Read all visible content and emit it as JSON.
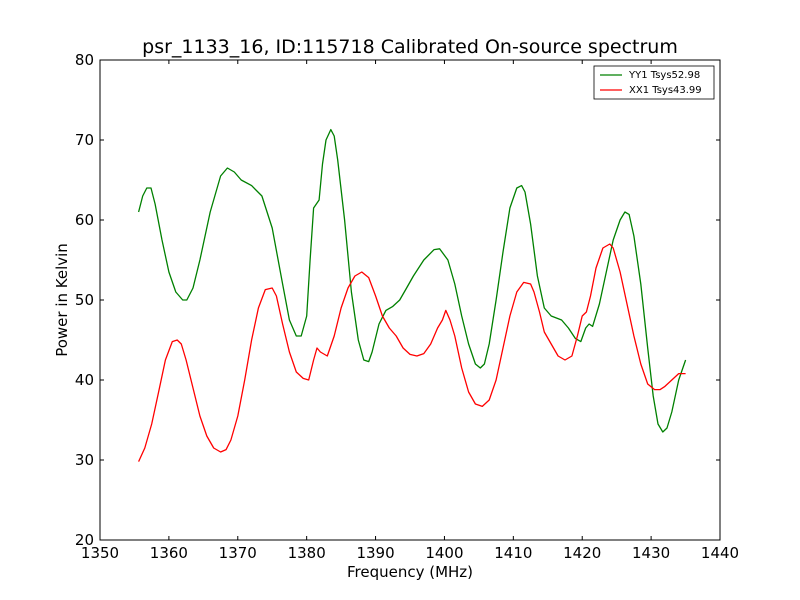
{
  "chart_data": {
    "type": "line",
    "title": "psr_1133_16, ID:115718 Calibrated On-source spectrum",
    "xlabel": "Frequency (MHz)",
    "ylabel": "Power in Kelvin",
    "xlim": [
      1350,
      1440
    ],
    "ylim": [
      20,
      80
    ],
    "xticks": [
      "1350",
      "1360",
      "1370",
      "1380",
      "1390",
      "1400",
      "1410",
      "1420",
      "1430",
      "1440"
    ],
    "yticks": [
      "20",
      "30",
      "40",
      "50",
      "60",
      "70",
      "80"
    ],
    "grid": false,
    "legend_position": "top-right",
    "series": [
      {
        "name": "YY1 Tsys52.98",
        "color": "#008000",
        "x": [
          1355.6,
          1356.2,
          1356.8,
          1357.4,
          1358.0,
          1359.0,
          1360.0,
          1361.0,
          1362.0,
          1362.6,
          1363.5,
          1364.5,
          1366.0,
          1367.5,
          1368.5,
          1369.5,
          1370.5,
          1372.0,
          1373.5,
          1375.0,
          1376.5,
          1377.5,
          1378.5,
          1379.2,
          1380.0,
          1380.5,
          1381.0,
          1381.8,
          1382.3,
          1382.8,
          1383.5,
          1384.0,
          1384.5,
          1385.5,
          1386.5,
          1387.5,
          1388.3,
          1389.0,
          1389.5,
          1390.5,
          1391.5,
          1392.5,
          1393.5,
          1394.5,
          1395.5,
          1397.0,
          1398.5,
          1399.3,
          1400.5,
          1401.5,
          1402.5,
          1403.5,
          1404.5,
          1405.2,
          1405.8,
          1406.5,
          1407.5,
          1408.5,
          1409.5,
          1410.5,
          1411.2,
          1411.7,
          1412.5,
          1413.5,
          1414.5,
          1415.5,
          1417.0,
          1418.0,
          1419.0,
          1419.8,
          1420.5,
          1421.0,
          1421.5,
          1422.5,
          1423.5,
          1424.5,
          1425.5,
          1426.2,
          1426.8,
          1427.5,
          1428.5,
          1429.5,
          1430.3,
          1431.0,
          1431.7,
          1432.3,
          1433.0,
          1434.0,
          1435.0
        ],
        "y": [
          61.0,
          63.0,
          64.0,
          64.0,
          62.0,
          57.5,
          53.5,
          51.0,
          50.0,
          50.0,
          51.5,
          55.0,
          61.0,
          65.5,
          66.5,
          66.0,
          65.0,
          64.3,
          63.0,
          59.0,
          52.0,
          47.5,
          45.5,
          45.5,
          48.0,
          55.0,
          61.5,
          62.5,
          67.0,
          70.0,
          71.3,
          70.5,
          67.5,
          60.0,
          51.0,
          45.0,
          42.5,
          42.3,
          43.5,
          47.0,
          48.7,
          49.2,
          50.0,
          51.5,
          53.0,
          55.0,
          56.3,
          56.4,
          55.0,
          52.0,
          48.0,
          44.5,
          42.0,
          41.5,
          42.0,
          44.5,
          50.0,
          56.0,
          61.5,
          64.0,
          64.3,
          63.5,
          59.5,
          53.0,
          49.0,
          48.0,
          47.5,
          46.5,
          45.2,
          44.8,
          46.5,
          47.0,
          46.7,
          49.5,
          53.5,
          57.5,
          60.0,
          61.0,
          60.7,
          58.0,
          52.0,
          44.0,
          38.0,
          34.5,
          33.5,
          34.0,
          36.0,
          40.0,
          42.5
        ]
      },
      {
        "name": "XX1 Tsys43.99",
        "color": "#ff0000",
        "x": [
          1355.6,
          1356.5,
          1357.5,
          1358.5,
          1359.5,
          1360.5,
          1361.2,
          1361.8,
          1362.5,
          1363.5,
          1364.5,
          1365.5,
          1366.5,
          1367.5,
          1368.3,
          1369.0,
          1370.0,
          1371.0,
          1372.0,
          1373.0,
          1374.0,
          1375.0,
          1375.6,
          1376.5,
          1377.5,
          1378.5,
          1379.5,
          1380.3,
          1381.0,
          1381.5,
          1382.0,
          1383.0,
          1384.0,
          1385.0,
          1386.0,
          1387.0,
          1388.0,
          1389.0,
          1390.0,
          1391.0,
          1392.0,
          1393.0,
          1394.0,
          1395.0,
          1396.0,
          1397.0,
          1398.0,
          1399.0,
          1399.7,
          1400.2,
          1400.8,
          1401.5,
          1402.5,
          1403.5,
          1404.5,
          1405.5,
          1406.5,
          1407.5,
          1408.5,
          1409.5,
          1410.5,
          1411.5,
          1412.5,
          1413.0,
          1413.8,
          1414.5,
          1415.5,
          1416.5,
          1417.5,
          1418.5,
          1419.3,
          1420.0,
          1420.6,
          1421.2,
          1422.0,
          1423.0,
          1424.0,
          1424.5,
          1425.5,
          1426.5,
          1427.5,
          1428.5,
          1429.5,
          1430.5,
          1431.3,
          1432.0,
          1433.0,
          1434.0,
          1435.0
        ],
        "y": [
          29.8,
          31.5,
          34.5,
          38.5,
          42.5,
          44.8,
          45.0,
          44.5,
          42.5,
          39.0,
          35.5,
          33.0,
          31.5,
          31.0,
          31.3,
          32.5,
          35.5,
          40.0,
          45.0,
          49.0,
          51.3,
          51.5,
          50.5,
          47.0,
          43.5,
          41.0,
          40.2,
          40.0,
          42.5,
          44.0,
          43.5,
          43.0,
          45.5,
          49.0,
          51.5,
          53.0,
          53.5,
          52.8,
          50.5,
          48.0,
          46.5,
          45.5,
          44.0,
          43.2,
          43.0,
          43.3,
          44.5,
          46.5,
          47.5,
          48.7,
          47.5,
          45.5,
          41.5,
          38.5,
          37.0,
          36.7,
          37.5,
          40.0,
          44.0,
          48.0,
          51.0,
          52.2,
          52.0,
          51.0,
          48.5,
          46.0,
          44.5,
          43.0,
          42.5,
          43.0,
          45.5,
          48.0,
          48.5,
          50.5,
          54.0,
          56.5,
          57.0,
          56.5,
          53.5,
          49.5,
          45.5,
          42.0,
          39.5,
          38.8,
          38.8,
          39.2,
          40.0,
          40.8,
          40.8
        ]
      }
    ]
  }
}
